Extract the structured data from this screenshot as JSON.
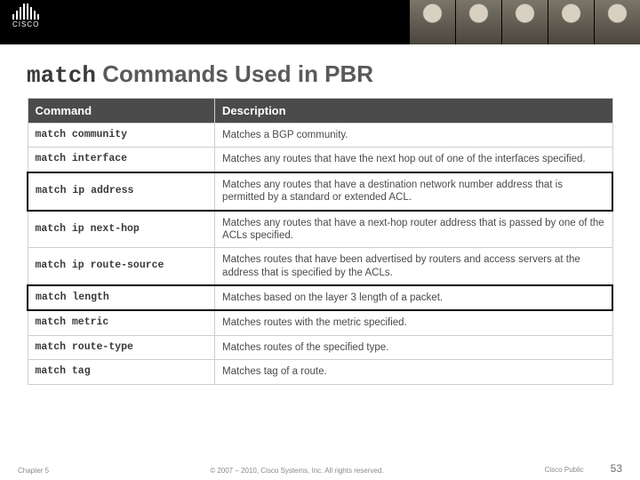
{
  "logo_text": "CISCO",
  "title_mono": "match",
  "title_rest": " Commands Used in PBR",
  "columns": [
    "Command",
    "Description"
  ],
  "rows": [
    {
      "cmd": "match community",
      "desc": "Matches a BGP community.",
      "hl": false
    },
    {
      "cmd": "match interface",
      "desc": "Matches any routes that have the next hop out of one of the interfaces specified.",
      "hl": false
    },
    {
      "cmd": "match ip address",
      "desc": "Matches any routes that have a destination network number address that is permitted by a standard or extended ACL.",
      "hl": true
    },
    {
      "cmd": "match ip next-hop",
      "desc": "Matches any routes that have a next-hop router address that is passed by one of the ACLs specified.",
      "hl": false
    },
    {
      "cmd": "match ip route-source",
      "desc": "Matches routes that have been advertised by routers and access servers at the address that is specified by the ACLs.",
      "hl": false
    },
    {
      "cmd": "match length",
      "desc": "Matches based on the layer 3 length of a packet.",
      "hl": true
    },
    {
      "cmd": "match metric",
      "desc": "Matches routes with the metric specified.",
      "hl": false
    },
    {
      "cmd": "match route-type",
      "desc": "Matches routes of the specified type.",
      "hl": false
    },
    {
      "cmd": "match tag",
      "desc": "Matches tag of a route.",
      "hl": false
    }
  ],
  "footer": {
    "chapter": "Chapter 5",
    "copyright": "© 2007 – 2010, Cisco Systems, Inc. All rights reserved.",
    "public": "Cisco Public",
    "page": "53"
  },
  "logo_bar_heights": [
    6,
    10,
    14,
    18,
    18,
    14,
    10,
    6
  ]
}
